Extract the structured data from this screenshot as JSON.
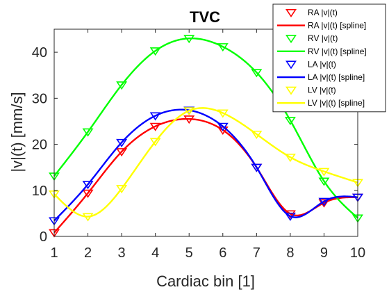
{
  "chart_data": {
    "type": "line",
    "title": "TVC",
    "xlabel": "Cardiac bin [1]",
    "ylabel": "|v|(t) [mm/s]",
    "xlim": [
      1,
      10
    ],
    "ylim": [
      0,
      45
    ],
    "xticks": [
      1,
      2,
      3,
      4,
      5,
      6,
      7,
      8,
      9,
      10
    ],
    "yticks": [
      0,
      10,
      20,
      30,
      40
    ],
    "grid": false,
    "legend_position": "top-right",
    "x": [
      1,
      2,
      3,
      4,
      5,
      6,
      7,
      8,
      9,
      10
    ],
    "series": [
      {
        "name": "RA |v|(t)",
        "marker_name": "RA |v|(t)",
        "spline_name": "RA |v|(t) [spline]",
        "color": "#ff0000",
        "values": [
          0.8,
          9.4,
          18.4,
          23.9,
          25.5,
          23.1,
          15.0,
          4.9,
          7.3,
          8.5
        ]
      },
      {
        "name": "RV |v|(t)",
        "marker_name": "RV |v|(t)",
        "spline_name": "RV |v|(t) [spline]",
        "color": "#00ff00",
        "values": [
          13.1,
          22.7,
          32.9,
          40.3,
          43.0,
          41.2,
          35.6,
          25.2,
          12.0,
          4.0
        ]
      },
      {
        "name": "LA |v|(t)",
        "marker_name": "LA |v|(t)",
        "spline_name": "LA |v|(t) [spline]",
        "color": "#0000ff",
        "values": [
          3.4,
          11.3,
          20.4,
          26.2,
          27.4,
          23.9,
          15.0,
          4.4,
          7.6,
          8.5
        ]
      },
      {
        "name": "LV |v|(t)",
        "marker_name": "LV |v|(t)",
        "spline_name": "LV |v|(t) [spline]",
        "color": "#ffff00",
        "values": [
          9.2,
          4.3,
          10.4,
          20.6,
          27.3,
          26.8,
          22.2,
          17.2,
          14.1,
          11.7
        ]
      }
    ]
  }
}
